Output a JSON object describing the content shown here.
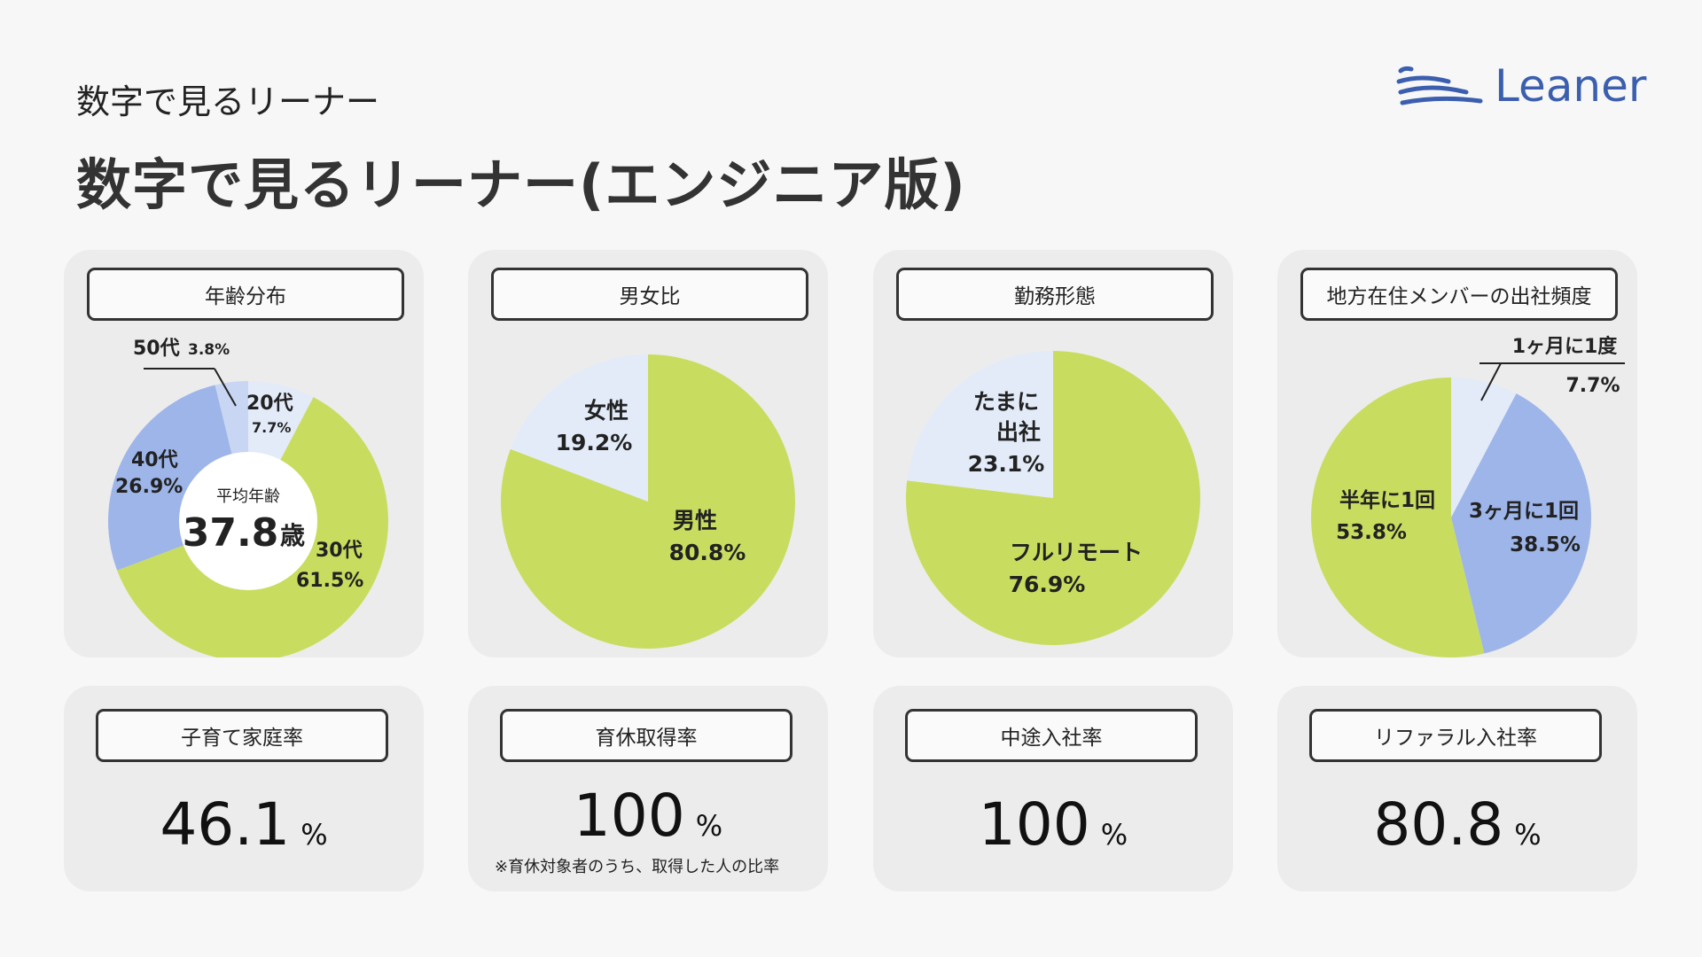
{
  "header": {
    "subtitle": "数字で見るリーナー",
    "title": "数字で見るリーナー(エンジニア版)",
    "logo_text": "Leaner",
    "brand_color": "#3b5fae"
  },
  "colors": {
    "green": "#c8dd5f",
    "blue": "#9db5e9",
    "light_blue": "#e3ebf9",
    "pale_blue": "#c8d6f3"
  },
  "age": {
    "label": "年齢分布",
    "avg_label": "平均年齢",
    "avg_value": "37.8",
    "avg_unit": "歳",
    "s20": {
      "name": "20代",
      "pct": "7.7%"
    },
    "s30": {
      "name": "30代",
      "pct": "61.5%"
    },
    "s40": {
      "name": "40代",
      "pct": "26.9%"
    },
    "s50": {
      "name": "50代",
      "pct": "3.8%"
    }
  },
  "gender": {
    "label": "男女比",
    "female": {
      "name": "女性",
      "pct": "19.2%"
    },
    "male": {
      "name": "男性",
      "pct": "80.8%"
    }
  },
  "work": {
    "label": "勤務形態",
    "office": {
      "line1": "たまに",
      "line2": "出社",
      "pct": "23.1%"
    },
    "remote": {
      "name": "フルリモート",
      "pct": "76.9%"
    }
  },
  "office_freq": {
    "label": "地方在住メンバーの出社頻度",
    "monthly": {
      "name": "1ヶ月に1度",
      "pct": "7.7%"
    },
    "quarterly": {
      "name": "3ヶ月に1回",
      "pct": "38.5%"
    },
    "halfyear": {
      "name": "半年に1回",
      "pct": "53.8%"
    }
  },
  "stats": {
    "childcare": {
      "label": "子育て家庭率",
      "value": "46.1",
      "unit": "%"
    },
    "parental_leave": {
      "label": "育休取得率",
      "value": "100",
      "unit": "%",
      "note": "※育休対象者のうち、取得した人の比率"
    },
    "midcareer": {
      "label": "中途入社率",
      "value": "100",
      "unit": "%"
    },
    "referral": {
      "label": "リファラル入社率",
      "value": "80.8",
      "unit": "%"
    }
  },
  "chart_data": [
    {
      "type": "pie",
      "title": "年齢分布",
      "donut": true,
      "categories": [
        "20代",
        "30代",
        "40代",
        "50代"
      ],
      "values": [
        7.7,
        61.5,
        26.9,
        3.8
      ],
      "colors": [
        "#e3ebf9",
        "#c8dd5f",
        "#9db5e9",
        "#c8d6f3"
      ],
      "center_label": "平均年齢 37.8歳"
    },
    {
      "type": "pie",
      "title": "男女比",
      "categories": [
        "男性",
        "女性"
      ],
      "values": [
        80.8,
        19.2
      ],
      "colors": [
        "#c8dd5f",
        "#e3ebf9"
      ]
    },
    {
      "type": "pie",
      "title": "勤務形態",
      "categories": [
        "フルリモート",
        "たまに出社"
      ],
      "values": [
        76.9,
        23.1
      ],
      "colors": [
        "#c8dd5f",
        "#e3ebf9"
      ]
    },
    {
      "type": "pie",
      "title": "地方在住メンバーの出社頻度",
      "categories": [
        "1ヶ月に1度",
        "3ヶ月に1回",
        "半年に1回"
      ],
      "values": [
        7.7,
        38.5,
        53.8
      ],
      "colors": [
        "#e3ebf9",
        "#9db5e9",
        "#c8dd5f"
      ]
    }
  ]
}
